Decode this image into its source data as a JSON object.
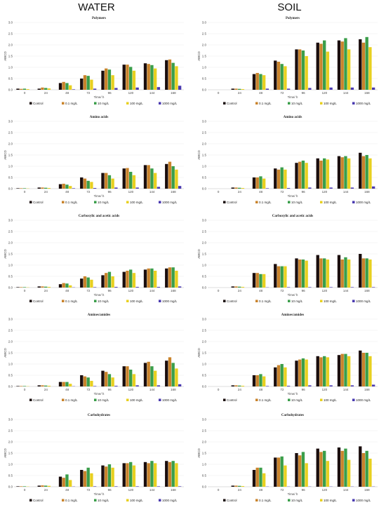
{
  "columns": {
    "water": "WATER",
    "soil": "SOIL"
  },
  "series_colors": [
    "#1a0d0d",
    "#c9832b",
    "#3a9e4a",
    "#e8d020",
    "#4a3ab0"
  ],
  "legend_labels": [
    "Control",
    "0.1 mg/L",
    "10 mg/L",
    "100 mg/L",
    "1000 mg/L"
  ],
  "chart_data": [
    {
      "id": "water-polymers",
      "type": "bar",
      "title": "Polymers",
      "xlabel": "Time/ h",
      "ylabel": "AWCD",
      "ylim": [
        0,
        3
      ],
      "categories": [
        "0",
        "24",
        "48",
        "72",
        "96",
        "120",
        "144",
        "168"
      ],
      "series": [
        {
          "name": "Control",
          "values": [
            0.05,
            0.05,
            0.3,
            0.5,
            0.85,
            1.12,
            1.18,
            1.32
          ]
        },
        {
          "name": "0.1 mg/L",
          "values": [
            0.04,
            0.1,
            0.35,
            0.65,
            0.95,
            1.12,
            1.15,
            1.35
          ]
        },
        {
          "name": "10 mg/L",
          "values": [
            0.05,
            0.08,
            0.3,
            0.62,
            0.9,
            1.02,
            1.1,
            1.2
          ]
        },
        {
          "name": "100 mg/L",
          "values": [
            0.03,
            0.06,
            0.2,
            0.45,
            0.65,
            0.85,
            0.95,
            1.05
          ]
        },
        {
          "name": "1000 mg/L",
          "values": [
            0.0,
            0.0,
            0.02,
            0.05,
            0.08,
            0.1,
            0.12,
            0.18
          ]
        }
      ]
    },
    {
      "id": "soil-polymers",
      "type": "bar",
      "title": "Polymers",
      "xlabel": "Time/ h",
      "ylabel": "AWCD",
      "ylim": [
        0,
        3
      ],
      "categories": [
        "0",
        "24",
        "48",
        "72",
        "96",
        "120",
        "144",
        "168"
      ],
      "series": [
        {
          "name": "Control",
          "values": [
            0.0,
            0.05,
            0.7,
            1.3,
            1.8,
            2.1,
            2.2,
            2.25
          ]
        },
        {
          "name": "0.1 mg/L",
          "values": [
            0.0,
            0.05,
            0.75,
            1.25,
            1.8,
            2.05,
            2.15,
            2.1
          ]
        },
        {
          "name": "10 mg/L",
          "values": [
            0.0,
            0.04,
            0.7,
            1.15,
            1.75,
            2.2,
            2.3,
            2.35
          ]
        },
        {
          "name": "100 mg/L",
          "values": [
            0.0,
            0.03,
            0.65,
            1.05,
            1.5,
            1.7,
            1.8,
            1.9
          ]
        },
        {
          "name": "1000 mg/L",
          "values": [
            0.0,
            0.0,
            0.05,
            0.05,
            0.08,
            0.1,
            0.1,
            0.1
          ]
        }
      ]
    },
    {
      "id": "water-amino",
      "type": "bar",
      "title": "Amino acids",
      "xlabel": "Time/ h",
      "ylabel": "AWCD",
      "ylim": [
        0,
        3
      ],
      "categories": [
        "0",
        "24",
        "48",
        "72",
        "96",
        "120",
        "144",
        "168"
      ],
      "series": [
        {
          "name": "Control",
          "values": [
            0.02,
            0.05,
            0.2,
            0.5,
            0.7,
            0.9,
            1.05,
            1.1
          ]
        },
        {
          "name": "0.1 mg/L",
          "values": [
            0.02,
            0.05,
            0.22,
            0.45,
            0.7,
            0.92,
            1.05,
            1.2
          ]
        },
        {
          "name": "10 mg/L",
          "values": [
            0.02,
            0.04,
            0.18,
            0.35,
            0.6,
            0.75,
            0.9,
            1.0
          ]
        },
        {
          "name": "100 mg/L",
          "values": [
            0.01,
            0.03,
            0.12,
            0.3,
            0.45,
            0.6,
            0.7,
            0.85
          ]
        },
        {
          "name": "1000 mg/L",
          "values": [
            0.0,
            0.0,
            0.02,
            0.03,
            0.05,
            0.05,
            0.08,
            0.12
          ]
        }
      ]
    },
    {
      "id": "soil-amino",
      "type": "bar",
      "title": "Amino acids",
      "xlabel": "Time/ h",
      "ylabel": "AWCD",
      "ylim": [
        0,
        3
      ],
      "categories": [
        "0",
        "24",
        "48",
        "72",
        "96",
        "120",
        "144",
        "168"
      ],
      "series": [
        {
          "name": "Control",
          "values": [
            0.0,
            0.05,
            0.5,
            0.9,
            1.15,
            1.35,
            1.45,
            1.6
          ]
        },
        {
          "name": "0.1 mg/L",
          "values": [
            0.0,
            0.05,
            0.5,
            0.85,
            1.2,
            1.25,
            1.4,
            1.45
          ]
        },
        {
          "name": "10 mg/L",
          "values": [
            0.0,
            0.04,
            0.55,
            0.95,
            1.25,
            1.35,
            1.45,
            1.5
          ]
        },
        {
          "name": "100 mg/L",
          "values": [
            0.0,
            0.03,
            0.45,
            0.85,
            1.15,
            1.3,
            1.35,
            1.35
          ]
        },
        {
          "name": "1000 mg/L",
          "values": [
            0.0,
            0.0,
            0.02,
            0.03,
            0.05,
            0.05,
            0.05,
            0.1
          ]
        }
      ]
    },
    {
      "id": "water-carboxylic",
      "type": "bar",
      "title": "Carboxylic and acetic acids",
      "xlabel": "Time/ h",
      "ylabel": "AWCD",
      "ylim": [
        0,
        3
      ],
      "categories": [
        "0",
        "24",
        "48",
        "72",
        "96",
        "120",
        "144",
        "168"
      ],
      "series": [
        {
          "name": "Control",
          "values": [
            0.02,
            0.05,
            0.15,
            0.4,
            0.55,
            0.7,
            0.8,
            0.85
          ]
        },
        {
          "name": "0.1 mg/L",
          "values": [
            0.02,
            0.05,
            0.2,
            0.5,
            0.65,
            0.75,
            0.85,
            0.9
          ]
        },
        {
          "name": "10 mg/L",
          "values": [
            0.02,
            0.04,
            0.18,
            0.45,
            0.7,
            0.8,
            0.85,
            0.9
          ]
        },
        {
          "name": "100 mg/L",
          "values": [
            0.01,
            0.03,
            0.1,
            0.35,
            0.5,
            0.65,
            0.75,
            0.75
          ]
        },
        {
          "name": "1000 mg/L",
          "values": [
            0.0,
            0.0,
            0.01,
            0.02,
            0.03,
            0.03,
            0.03,
            0.05
          ]
        }
      ]
    },
    {
      "id": "soil-carboxylic",
      "type": "bar",
      "title": "Carboxylic and acetic acids",
      "xlabel": "Time/ h",
      "ylabel": "AWCD",
      "ylim": [
        0,
        3
      ],
      "categories": [
        "0",
        "24",
        "48",
        "72",
        "96",
        "120",
        "144",
        "168"
      ],
      "series": [
        {
          "name": "Control",
          "values": [
            0.0,
            0.05,
            0.65,
            1.05,
            1.3,
            1.45,
            1.45,
            1.5
          ]
        },
        {
          "name": "0.1 mg/L",
          "values": [
            0.0,
            0.05,
            0.65,
            0.95,
            1.25,
            1.3,
            1.25,
            1.3
          ]
        },
        {
          "name": "10 mg/L",
          "values": [
            0.0,
            0.04,
            0.6,
            0.95,
            1.25,
            1.3,
            1.35,
            1.3
          ]
        },
        {
          "name": "100 mg/L",
          "values": [
            0.0,
            0.03,
            0.6,
            0.95,
            1.2,
            1.25,
            1.25,
            1.25
          ]
        },
        {
          "name": "1000 mg/L",
          "values": [
            0.0,
            0.0,
            0.01,
            0.02,
            0.02,
            0.02,
            0.02,
            0.02
          ]
        }
      ]
    },
    {
      "id": "water-amines",
      "type": "bar",
      "title": "Amines/amides",
      "xlabel": "Time/ h",
      "ylabel": "AWCD",
      "ylim": [
        0,
        3
      ],
      "categories": [
        "0",
        "24",
        "48",
        "72",
        "96",
        "120",
        "144",
        "168"
      ],
      "series": [
        {
          "name": "Control",
          "values": [
            0.02,
            0.05,
            0.2,
            0.5,
            0.7,
            0.9,
            1.05,
            1.15
          ]
        },
        {
          "name": "0.1 mg/L",
          "values": [
            0.02,
            0.05,
            0.2,
            0.45,
            0.65,
            0.9,
            1.1,
            1.3
          ]
        },
        {
          "name": "10 mg/L",
          "values": [
            0.02,
            0.04,
            0.2,
            0.4,
            0.55,
            0.75,
            0.9,
            1.05
          ]
        },
        {
          "name": "100 mg/L",
          "values": [
            0.01,
            0.03,
            0.12,
            0.25,
            0.4,
            0.55,
            0.7,
            0.8
          ]
        },
        {
          "name": "1000 mg/L",
          "values": [
            0.0,
            0.0,
            0.01,
            0.02,
            0.03,
            0.05,
            0.05,
            0.1
          ]
        }
      ]
    },
    {
      "id": "soil-amines",
      "type": "bar",
      "title": "Amines/amides",
      "xlabel": "Time/ h",
      "ylabel": "AWCD",
      "ylim": [
        0,
        3
      ],
      "categories": [
        "0",
        "24",
        "48",
        "72",
        "96",
        "120",
        "144",
        "168"
      ],
      "series": [
        {
          "name": "Control",
          "values": [
            0.0,
            0.05,
            0.5,
            0.85,
            1.15,
            1.35,
            1.4,
            1.6
          ]
        },
        {
          "name": "0.1 mg/L",
          "values": [
            0.0,
            0.05,
            0.5,
            0.95,
            1.2,
            1.3,
            1.45,
            1.5
          ]
        },
        {
          "name": "10 mg/L",
          "values": [
            0.0,
            0.04,
            0.55,
            1.0,
            1.25,
            1.35,
            1.45,
            1.5
          ]
        },
        {
          "name": "100 mg/L",
          "values": [
            0.0,
            0.03,
            0.45,
            0.85,
            1.2,
            1.3,
            1.35,
            1.35
          ]
        },
        {
          "name": "1000 mg/L",
          "values": [
            0.0,
            0.0,
            0.02,
            0.03,
            0.05,
            0.05,
            0.05,
            0.08
          ]
        }
      ]
    },
    {
      "id": "water-carbohydrates",
      "type": "bar",
      "title": "Carbohydrates",
      "xlabel": "Time/ h",
      "ylabel": "AWCD",
      "ylim": [
        0,
        3
      ],
      "categories": [
        "0",
        "24",
        "48",
        "72",
        "96",
        "120",
        "144",
        "168"
      ],
      "series": [
        {
          "name": "Control",
          "values": [
            0.02,
            0.05,
            0.45,
            0.75,
            0.95,
            1.05,
            1.1,
            1.15
          ]
        },
        {
          "name": "0.1 mg/L",
          "values": [
            0.02,
            0.06,
            0.4,
            0.7,
            0.9,
            1.05,
            1.05,
            1.1
          ]
        },
        {
          "name": "10 mg/L",
          "values": [
            0.02,
            0.05,
            0.55,
            0.85,
            1.0,
            1.1,
            1.15,
            1.15
          ]
        },
        {
          "name": "100 mg/L",
          "values": [
            0.01,
            0.04,
            0.3,
            0.6,
            0.85,
            0.95,
            1.05,
            1.05
          ]
        },
        {
          "name": "1000 mg/L",
          "values": [
            0.0,
            0.0,
            0.01,
            0.02,
            0.02,
            0.02,
            0.02,
            0.02
          ]
        }
      ]
    },
    {
      "id": "soil-carbohydrates",
      "type": "bar",
      "title": "Carbohydrates",
      "xlabel": "Time/ h",
      "ylabel": "AWCD",
      "ylim": [
        0,
        3
      ],
      "categories": [
        "0",
        "24",
        "48",
        "72",
        "96",
        "120",
        "144",
        "168"
      ],
      "series": [
        {
          "name": "Control",
          "values": [
            0.0,
            0.05,
            0.75,
            1.3,
            1.5,
            1.7,
            1.75,
            1.8
          ]
        },
        {
          "name": "0.1 mg/L",
          "values": [
            0.0,
            0.05,
            0.85,
            1.3,
            1.4,
            1.55,
            1.6,
            1.5
          ]
        },
        {
          "name": "10 mg/L",
          "values": [
            0.0,
            0.04,
            0.85,
            1.35,
            1.55,
            1.6,
            1.7,
            1.6
          ]
        },
        {
          "name": "100 mg/L",
          "values": [
            0.0,
            0.03,
            0.6,
            0.95,
            1.05,
            1.15,
            1.2,
            1.25
          ]
        },
        {
          "name": "1000 mg/L",
          "values": [
            0.0,
            0.0,
            0.01,
            0.01,
            0.01,
            0.01,
            0.01,
            0.01
          ]
        }
      ]
    }
  ]
}
